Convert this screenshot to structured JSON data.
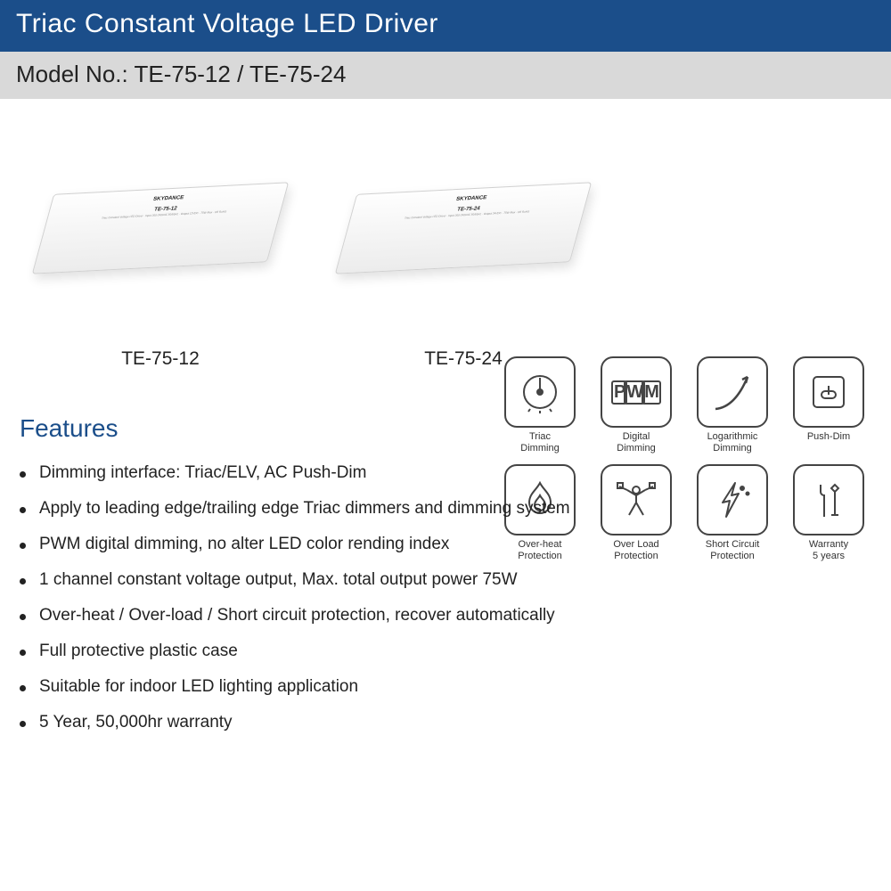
{
  "header": {
    "title": "Triac Constant Voltage LED Driver",
    "subtitle": "Model No.: TE-75-12 / TE-75-24",
    "title_bg": "#1b4e8a",
    "title_color": "#ffffff",
    "subtitle_bg": "#d9d9d9"
  },
  "products": [
    {
      "sku": "TE-75-12",
      "brand": "SKYDANCE"
    },
    {
      "sku": "TE-75-24",
      "brand": "SKYDANCE"
    }
  ],
  "icons": [
    {
      "name": "triac-dimming-icon",
      "label": "Triac\nDimming"
    },
    {
      "name": "pwm-icon",
      "label": "Digital\nDimming",
      "text": "PWM"
    },
    {
      "name": "log-curve-icon",
      "label": "Logarithmic\nDimming"
    },
    {
      "name": "push-dim-icon",
      "label": "Push-Dim"
    },
    {
      "name": "overheat-icon",
      "label": "Over-heat\nProtection"
    },
    {
      "name": "overload-icon",
      "label": "Over Load\nProtection"
    },
    {
      "name": "short-circuit-icon",
      "label": "Short Circuit\nProtection"
    },
    {
      "name": "warranty-icon",
      "label": "Warranty\n5 years"
    }
  ],
  "features": {
    "heading": "Features",
    "heading_color": "#1b4e8a",
    "items": [
      "Dimming interface: Triac/ELV, AC Push-Dim",
      "Apply to leading edge/trailing edge Triac dimmers and dimming system",
      "PWM digital dimming, no alter LED color rending index",
      "1 channel constant voltage output, Max. total output power 75W",
      "Over-heat / Over-load / Short circuit protection, recover automatically",
      "Full protective plastic case",
      "Suitable for indoor LED lighting application",
      "5 Year, 50,000hr warranty"
    ]
  }
}
